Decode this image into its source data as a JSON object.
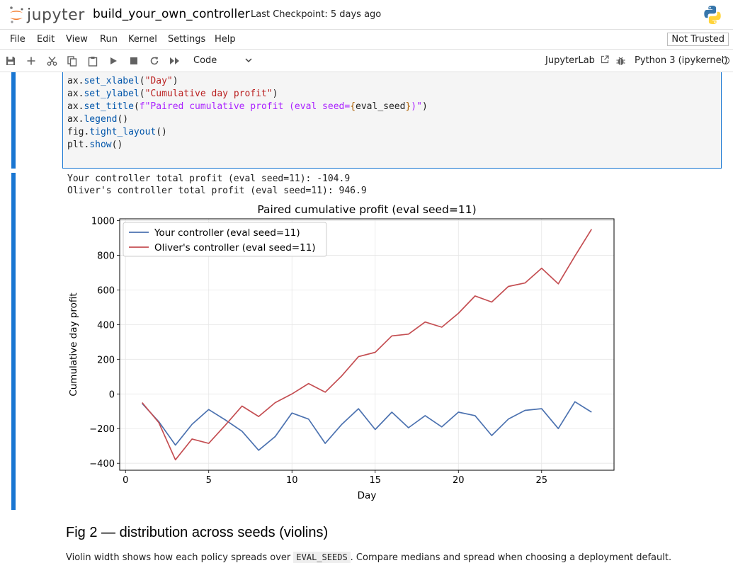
{
  "header": {
    "logo_text": "jupyter",
    "notebook_title": "build_your_own_controller",
    "checkpoint": "Last Checkpoint: 5 days ago",
    "logo_icon": "python-logo-icon"
  },
  "menu": {
    "items": [
      "File",
      "Edit",
      "View",
      "Run",
      "Kernel",
      "Settings",
      "Help"
    ],
    "trust": "Not Trusted"
  },
  "toolbar": {
    "icons": [
      "save-icon",
      "add-cell-icon",
      "cut-icon",
      "copy-icon",
      "paste-icon",
      "run-icon",
      "stop-icon",
      "restart-icon",
      "run-all-icon"
    ],
    "cell_type": "Code",
    "jupyterlab": "JupyterLab",
    "kernel": "Python 3 (ipykernel)"
  },
  "code_cell": {
    "lines": [
      {
        "obj": "ax.",
        "method": "set_xlabel",
        "args": "(\"Day\")"
      },
      {
        "obj": "ax.",
        "method": "set_ylabel",
        "args": "(\"Cumulative day profit\")"
      },
      {
        "obj": "ax.",
        "method": "set_title",
        "args": "(f\"Paired cumulative profit (eval seed={eval_seed})\")"
      },
      {
        "obj": "ax.",
        "method": "legend",
        "args": "()"
      },
      {
        "obj": "fig.",
        "method": "tight_layout",
        "args": "()"
      },
      {
        "obj": "plt.",
        "method": "show",
        "args": "()"
      }
    ]
  },
  "output": {
    "line1": "Your controller total profit (eval seed=11): -104.9",
    "line2": "Oliver's controller total profit (eval seed=11): 946.9"
  },
  "chart_data": {
    "type": "line",
    "title": "Paired cumulative profit (eval seed=11)",
    "xlabel": "Day",
    "ylabel": "Cumulative day profit",
    "xlim": [
      -0.35,
      29.35
    ],
    "ylim": [
      -440,
      1010
    ],
    "xticks": [
      0,
      5,
      10,
      15,
      20,
      25
    ],
    "yticks": [
      -400,
      -200,
      0,
      200,
      400,
      600,
      800,
      1000
    ],
    "grid": true,
    "legend_position": "top-left",
    "x": [
      1,
      2,
      3,
      4,
      5,
      6,
      7,
      8,
      9,
      10,
      11,
      12,
      13,
      14,
      15,
      16,
      17,
      18,
      19,
      20,
      21,
      22,
      23,
      24,
      25,
      26,
      27,
      28
    ],
    "series": [
      {
        "name": "Your controller (eval seed=11)",
        "color": "#4c72b0",
        "values": [
          -55,
          -160,
          -295,
          -175,
          -90,
          -150,
          -215,
          -325,
          -245,
          -110,
          -145,
          -285,
          -175,
          -85,
          -205,
          -105,
          -195,
          -125,
          -190,
          -105,
          -125,
          -240,
          -145,
          -95,
          -85,
          -200,
          -45,
          -105
        ]
      },
      {
        "name": "Oliver's controller (eval seed=11)",
        "color": "#c44e52",
        "values": [
          -50,
          -165,
          -380,
          -260,
          -285,
          -180,
          -70,
          -130,
          -50,
          0,
          60,
          10,
          105,
          215,
          240,
          335,
          345,
          415,
          385,
          465,
          565,
          530,
          620,
          640,
          725,
          635,
          795,
          950
        ]
      }
    ]
  },
  "markdown": {
    "heading": "Fig 2 — distribution across seeds (violins)",
    "para_before": "Violin width shows how each policy spreads over ",
    "para_code": "EVAL_SEEDS",
    "para_after": ". Compare medians and spread when choosing a deployment default."
  }
}
